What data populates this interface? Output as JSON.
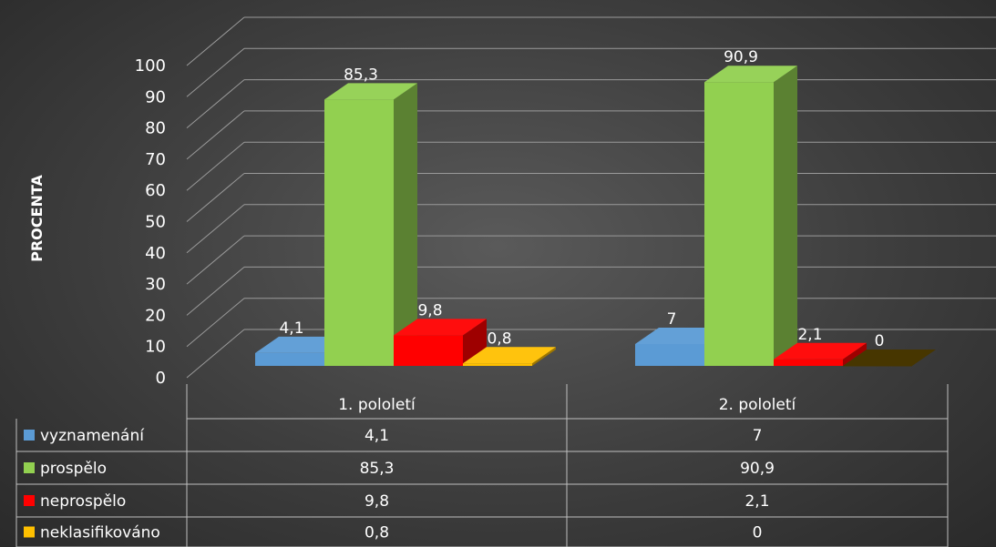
{
  "chart_data": {
    "type": "bar",
    "ylabel": "PROCENTA",
    "ylim": [
      0,
      100
    ],
    "yticks": [
      "0",
      "10",
      "20",
      "30",
      "40",
      "50",
      "60",
      "70",
      "80",
      "90",
      "100"
    ],
    "categories": [
      "1. pololetí",
      "2. pololetí"
    ],
    "series": [
      {
        "name": "vyznamenání",
        "values": [
          4.1,
          7
        ],
        "labels": [
          "4,1",
          "7"
        ],
        "color": "#5b9bd5"
      },
      {
        "name": "prospělo",
        "values": [
          85.3,
          90.9
        ],
        "labels": [
          "85,3",
          "90,9"
        ],
        "color": "#92d050"
      },
      {
        "name": "neprospělo",
        "values": [
          9.8,
          2.1
        ],
        "labels": [
          "9,8",
          "2,1"
        ],
        "color": "#ff0000"
      },
      {
        "name": "neklasifikováno",
        "values": [
          0.8,
          0
        ],
        "labels": [
          "0,8",
          "0"
        ],
        "color": "#ffc000"
      }
    ],
    "grid": true,
    "legend": "data-table"
  }
}
